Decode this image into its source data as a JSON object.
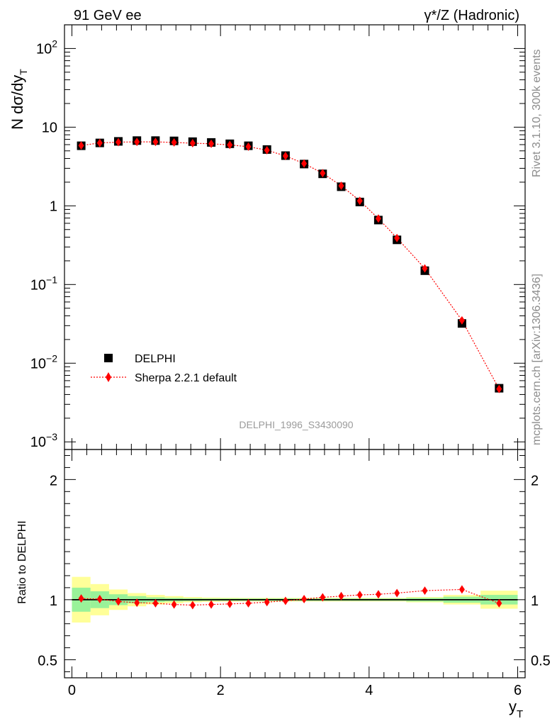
{
  "header": {
    "left": "91 GeV ee",
    "right": "γ*/Z (Hadronic)"
  },
  "side_labels": {
    "rivet": "Rivet 3.1.10,  300k events",
    "mcplots": "mcplots.cern.ch [arXiv:1306.3436]"
  },
  "watermark": "DELPHI_1996_S3430090",
  "legend": {
    "data": "DELPHI",
    "mc": "Sherpa 2.2.1 default"
  },
  "colors": {
    "data": "#000000",
    "mc": "#ff0000",
    "band_inner": "#99f299",
    "band_outer": "#ffff99"
  },
  "chart_data": [
    {
      "type": "scatter",
      "yscale": "log",
      "ylabel": "N dσ/dy_T",
      "xlim": [
        -0.1,
        6.1
      ],
      "ylim": [
        0.0008,
        200
      ],
      "ytick_labels": [
        "10^-3",
        "10^-2",
        "10^-1",
        "1",
        "10",
        "10^2"
      ],
      "x": [
        0.125,
        0.375,
        0.625,
        0.875,
        1.125,
        1.375,
        1.625,
        1.875,
        2.125,
        2.375,
        2.625,
        2.875,
        3.125,
        3.375,
        3.625,
        3.875,
        4.125,
        4.375,
        4.75,
        5.25,
        5.75
      ],
      "series": [
        {
          "name": "DELPHI",
          "values": [
            5.8,
            6.3,
            6.6,
            6.75,
            6.75,
            6.7,
            6.55,
            6.4,
            6.15,
            5.8,
            5.2,
            4.35,
            3.4,
            2.55,
            1.75,
            1.12,
            0.66,
            0.37,
            0.15,
            0.032,
            0.0048
          ]
        },
        {
          "name": "Sherpa 2.2.1 default",
          "values": [
            5.85,
            6.3,
            6.45,
            6.5,
            6.5,
            6.4,
            6.25,
            6.15,
            5.95,
            5.65,
            5.1,
            4.3,
            3.45,
            2.6,
            1.8,
            1.16,
            0.69,
            0.39,
            0.16,
            0.035,
            0.0047
          ]
        }
      ]
    },
    {
      "type": "scatter",
      "ylabel": "Ratio to DELPHI",
      "xlabel": "y_T",
      "xlim": [
        -0.1,
        6.1
      ],
      "ylim": [
        0.35,
        2.25
      ],
      "yticks": [
        0.5,
        1,
        2
      ],
      "xticks": [
        0,
        2,
        4,
        6
      ],
      "x": [
        0.125,
        0.375,
        0.625,
        0.875,
        1.125,
        1.375,
        1.625,
        1.875,
        2.125,
        2.375,
        2.625,
        2.875,
        3.125,
        3.375,
        3.625,
        3.875,
        4.125,
        4.375,
        4.75,
        5.25,
        5.75
      ],
      "ratio": [
        1.01,
        1.005,
        0.985,
        0.975,
        0.97,
        0.96,
        0.955,
        0.96,
        0.965,
        0.97,
        0.98,
        0.99,
        1.005,
        1.02,
        1.03,
        1.04,
        1.045,
        1.055,
        1.075,
        1.085,
        0.97
      ],
      "band_edges": [
        0,
        0.25,
        0.5,
        0.75,
        1.0,
        1.25,
        1.5,
        1.75,
        2.0,
        2.25,
        2.5,
        2.75,
        3.0,
        3.25,
        3.5,
        3.75,
        4.0,
        4.25,
        4.5,
        5.0,
        5.5,
        6.0
      ],
      "band_inner": [
        0.1,
        0.07,
        0.045,
        0.03,
        0.02,
        0.015,
        0.012,
        0.01,
        0.01,
        0.01,
        0.01,
        0.01,
        0.01,
        0.01,
        0.01,
        0.01,
        0.01,
        0.01,
        0.015,
        0.025,
        0.04
      ],
      "band_outer": [
        0.19,
        0.13,
        0.085,
        0.055,
        0.04,
        0.03,
        0.022,
        0.018,
        0.016,
        0.015,
        0.015,
        0.015,
        0.015,
        0.015,
        0.015,
        0.015,
        0.015,
        0.015,
        0.022,
        0.04,
        0.075
      ]
    }
  ]
}
